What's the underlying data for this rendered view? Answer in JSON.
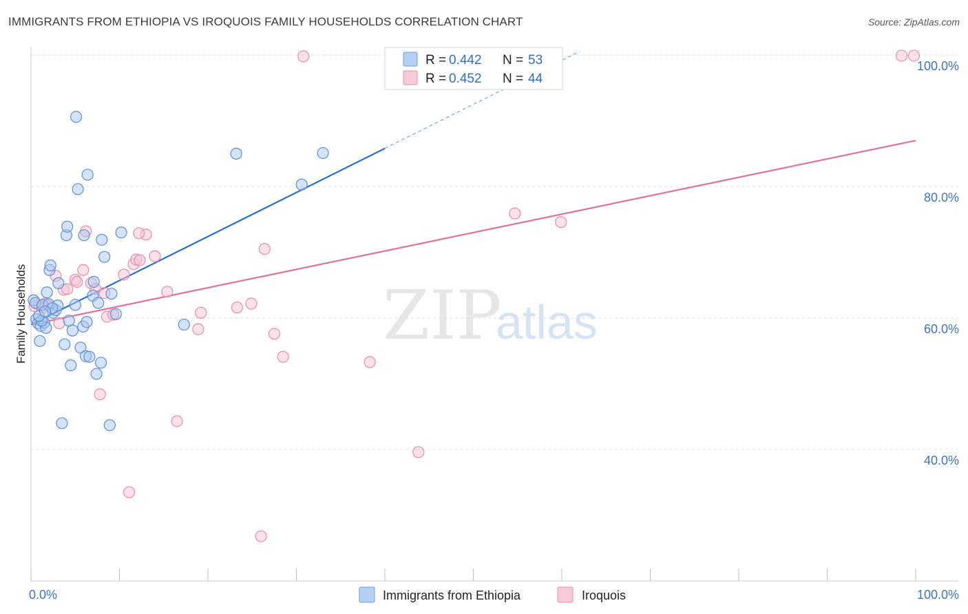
{
  "title": "IMMIGRANTS FROM ETHIOPIA VS IROQUOIS FAMILY HOUSEHOLDS CORRELATION CHART",
  "source": "Source: ZipAtlas.com",
  "watermark": {
    "zip": "ZIP",
    "atlas": "atlas"
  },
  "colors": {
    "blue_fill": "#a9c8f0",
    "blue_stroke": "#5b8fd6",
    "blue_line": "#2a6fcf",
    "pink_fill": "#f7c3d3",
    "pink_stroke": "#e98bab",
    "pink_line": "#e0709a",
    "grid": "#dcdcdc",
    "axis_text": "#3b73c8"
  },
  "legend": {
    "rows": [
      {
        "r_label": "R =",
        "r_value": "0.442",
        "n_label": "N =",
        "n_value": "53"
      },
      {
        "r_label": "R =",
        "r_value": "0.452",
        "n_label": "N =",
        "n_value": "44"
      }
    ]
  },
  "chart_data": {
    "type": "scatter",
    "title": "IMMIGRANTS FROM ETHIOPIA VS IROQUOIS FAMILY HOUSEHOLDS CORRELATION CHART",
    "xlabel": "",
    "ylabel": "Family Households",
    "xlim": [
      0,
      100
    ],
    "ylim": [
      20,
      102
    ],
    "x_tick_labels": [
      "0.0%",
      "100.0%"
    ],
    "y_ticks": [
      40,
      60,
      80,
      100
    ],
    "y_tick_labels": [
      "40.0%",
      "60.0%",
      "80.0%",
      "100.0%"
    ],
    "grid": true,
    "legend_position": "top-center",
    "series": [
      {
        "name": "Immigrants from Ethiopia",
        "r": 0.442,
        "n": 53,
        "trend": {
          "x0": 0,
          "y0": 59.0,
          "x1": 40,
          "y1": 85.8,
          "dash_to_x": 62
        },
        "points": [
          [
            0.3,
            62.7
          ],
          [
            0.5,
            62.3
          ],
          [
            0.6,
            59.8
          ],
          [
            0.8,
            59.2
          ],
          [
            1.0,
            56.5
          ],
          [
            1.1,
            58.8
          ],
          [
            1.3,
            62.0
          ],
          [
            1.5,
            59.3
          ],
          [
            1.7,
            58.5
          ],
          [
            1.8,
            63.9
          ],
          [
            2.0,
            62.1
          ],
          [
            2.1,
            67.3
          ],
          [
            2.2,
            68.0
          ],
          [
            2.5,
            60.8
          ],
          [
            2.8,
            61.2
          ],
          [
            3.0,
            61.9
          ],
          [
            3.1,
            65.3
          ],
          [
            3.5,
            44.0
          ],
          [
            3.8,
            56.0
          ],
          [
            4.0,
            72.6
          ],
          [
            4.1,
            73.9
          ],
          [
            4.3,
            59.6
          ],
          [
            4.5,
            52.8
          ],
          [
            4.7,
            58.1
          ],
          [
            5.1,
            90.6
          ],
          [
            5.3,
            79.6
          ],
          [
            5.6,
            55.5
          ],
          [
            5.9,
            58.7
          ],
          [
            6.0,
            72.6
          ],
          [
            6.2,
            54.2
          ],
          [
            6.3,
            59.4
          ],
          [
            6.4,
            81.8
          ],
          [
            6.6,
            54.1
          ],
          [
            7.1,
            65.5
          ],
          [
            7.0,
            63.4
          ],
          [
            7.4,
            51.5
          ],
          [
            7.6,
            62.3
          ],
          [
            7.9,
            53.2
          ],
          [
            8.0,
            71.9
          ],
          [
            8.3,
            69.3
          ],
          [
            8.9,
            43.7
          ],
          [
            9.1,
            63.7
          ],
          [
            9.6,
            60.6
          ],
          [
            10.2,
            73.0
          ],
          [
            17.3,
            59.0
          ],
          [
            23.2,
            85.0
          ],
          [
            30.6,
            80.3
          ],
          [
            33.0,
            85.1
          ],
          [
            1.2,
            59.6
          ],
          [
            2.4,
            61.5
          ],
          [
            0.9,
            60.3
          ],
          [
            1.6,
            61.0
          ],
          [
            5.0,
            62.0
          ]
        ]
      },
      {
        "name": "Iroquois",
        "r": 0.452,
        "n": 44,
        "trend": {
          "x0": 0,
          "y0": 59.0,
          "x1": 100,
          "y1": 87.0
        },
        "points": [
          [
            0.4,
            61.8
          ],
          [
            0.9,
            62.0
          ],
          [
            1.3,
            61.6
          ],
          [
            1.6,
            62.2
          ],
          [
            2.0,
            61.8
          ],
          [
            2.8,
            66.4
          ],
          [
            3.2,
            59.2
          ],
          [
            3.7,
            64.3
          ],
          [
            4.1,
            64.4
          ],
          [
            5.0,
            65.8
          ],
          [
            5.2,
            65.5
          ],
          [
            5.9,
            67.3
          ],
          [
            6.2,
            73.2
          ],
          [
            6.8,
            65.3
          ],
          [
            7.3,
            64.4
          ],
          [
            7.8,
            48.4
          ],
          [
            8.3,
            63.8
          ],
          [
            8.6,
            60.2
          ],
          [
            9.3,
            60.5
          ],
          [
            10.5,
            66.6
          ],
          [
            11.1,
            33.5
          ],
          [
            11.6,
            68.2
          ],
          [
            11.9,
            68.9
          ],
          [
            12.3,
            68.8
          ],
          [
            13.0,
            72.7
          ],
          [
            14.0,
            69.4
          ],
          [
            15.4,
            64.0
          ],
          [
            16.5,
            44.3
          ],
          [
            18.9,
            58.3
          ],
          [
            19.2,
            60.8
          ],
          [
            23.3,
            61.6
          ],
          [
            24.9,
            62.2
          ],
          [
            26.0,
            26.8
          ],
          [
            26.4,
            70.5
          ],
          [
            27.5,
            57.6
          ],
          [
            28.5,
            54.1
          ],
          [
            30.8,
            99.8
          ],
          [
            38.3,
            53.3
          ],
          [
            43.8,
            39.6
          ],
          [
            54.7,
            75.9
          ],
          [
            59.9,
            74.6
          ],
          [
            98.4,
            99.9
          ],
          [
            99.8,
            99.9
          ],
          [
            12.2,
            72.9
          ]
        ]
      }
    ]
  }
}
